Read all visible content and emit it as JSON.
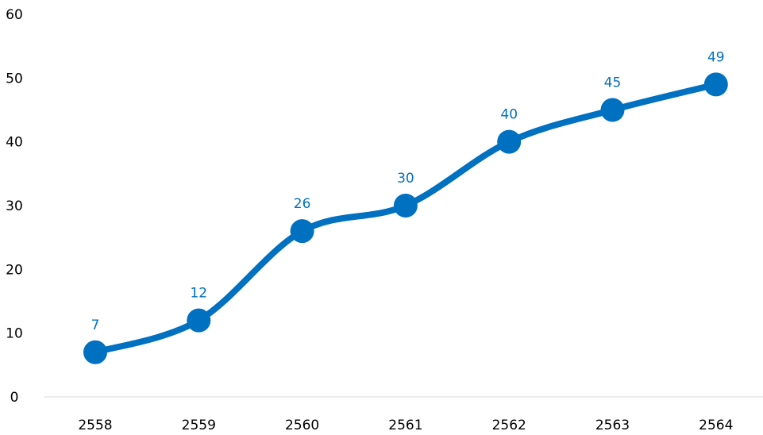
{
  "chart_data": {
    "type": "line",
    "categories": [
      "2558",
      "2559",
      "2560",
      "2561",
      "2562",
      "2563",
      "2564"
    ],
    "series": [
      {
        "values": [
          7,
          12,
          26,
          30,
          40,
          45,
          49
        ],
        "color": "#0070C0"
      }
    ],
    "ylim": [
      0,
      60
    ],
    "yticks": [
      0,
      10,
      20,
      30,
      40,
      50,
      60
    ],
    "grid": false,
    "smooth": true,
    "data_labels": true,
    "axis_line_color": "#D9D9D9"
  }
}
